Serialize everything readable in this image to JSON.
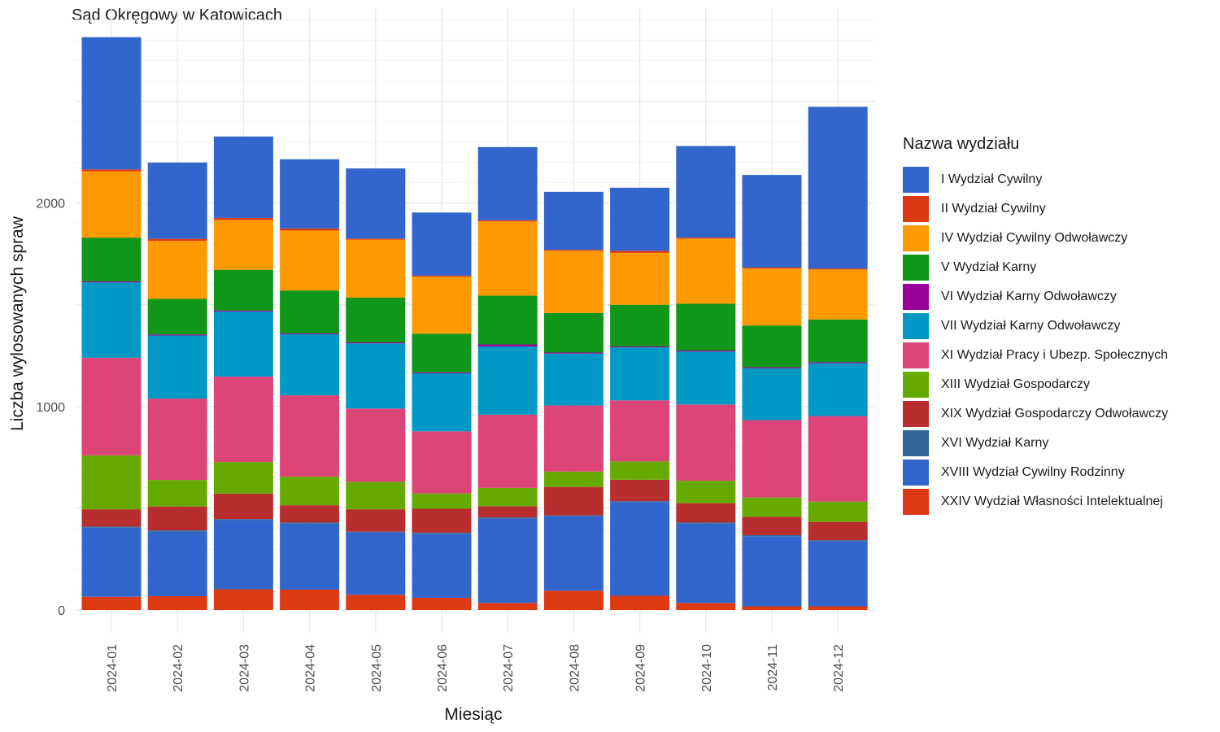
{
  "chart_data": {
    "type": "bar",
    "stacked": true,
    "title": "Sąd Okręgowy w Katowicach",
    "xlabel": "Miesiąc",
    "ylabel": "Liczba wylosowanych spraw",
    "ylim": [
      0,
      2900
    ],
    "yticks": [
      0,
      1000,
      2000
    ],
    "grid": true,
    "legend_title": "Nazwa wydziału",
    "legend_position": "right",
    "categories": [
      "2024-01",
      "2024-02",
      "2024-03",
      "2024-04",
      "2024-05",
      "2024-06",
      "2024-07",
      "2024-08",
      "2024-09",
      "2024-10",
      "2024-11",
      "2024-12"
    ],
    "series": [
      {
        "name": "XXIV Wydział Własności Intelektualnej",
        "color": "#DD3A14",
        "values": [
          65,
          68,
          102,
          100,
          75,
          60,
          35,
          95,
          70,
          35,
          18,
          18
        ]
      },
      {
        "name": "XVIII Wydział Cywilny Rodzinny",
        "color": "#3366CC",
        "values": [
          340,
          318,
          340,
          325,
          305,
          315,
          415,
          365,
          460,
          390,
          345,
          320
        ]
      },
      {
        "name": "XVI Wydział Karny",
        "color": "#336699",
        "values": [
          5,
          5,
          5,
          5,
          5,
          5,
          5,
          5,
          5,
          5,
          5,
          5
        ]
      },
      {
        "name": "XIX Wydział Gospodarczy Odwoławczy",
        "color": "#B82E2E",
        "values": [
          85,
          118,
          125,
          85,
          110,
          118,
          55,
          140,
          105,
          95,
          90,
          90
        ]
      },
      {
        "name": "XIII Wydział Gospodarczy",
        "color": "#66AA00",
        "values": [
          265,
          130,
          155,
          140,
          135,
          75,
          90,
          75,
          90,
          110,
          95,
          100
        ]
      },
      {
        "name": "XI Wydział Pracy i Ubezp. Społecznych",
        "color": "#DD4477",
        "values": [
          480,
          400,
          420,
          400,
          360,
          305,
          360,
          325,
          300,
          375,
          380,
          420
        ]
      },
      {
        "name": "VII Wydział Karny Odwoławczy",
        "color": "#0099C6",
        "values": [
          370,
          310,
          320,
          300,
          320,
          285,
          335,
          255,
          260,
          260,
          255,
          260
        ]
      },
      {
        "name": "VI Wydział Karny Odwoławczy",
        "color": "#990099",
        "values": [
          5,
          5,
          5,
          5,
          5,
          5,
          10,
          5,
          5,
          5,
          5,
          5
        ]
      },
      {
        "name": "V Wydział Karny",
        "color": "#109618",
        "values": [
          215,
          175,
          200,
          210,
          220,
          190,
          240,
          195,
          205,
          230,
          205,
          210
        ]
      },
      {
        "name": "IV Wydział Cywilny Odwoławczy",
        "color": "#FF9900",
        "values": [
          325,
          285,
          245,
          295,
          285,
          280,
          365,
          305,
          255,
          320,
          280,
          245
        ]
      },
      {
        "name": "II Wydział Cywilny",
        "color": "#DC3912",
        "values": [
          10,
          10,
          10,
          10,
          5,
          5,
          5,
          5,
          10,
          5,
          5,
          5
        ]
      },
      {
        "name": "I Wydział Cywilny",
        "color": "#3366CC",
        "values": [
          650,
          375,
          400,
          340,
          345,
          310,
          360,
          285,
          310,
          450,
          455,
          795
        ]
      }
    ]
  },
  "legend_order": [
    "I Wydział Cywilny",
    "II Wydział Cywilny",
    "IV Wydział Cywilny Odwoławczy",
    "V Wydział Karny",
    "VI Wydział Karny Odwoławczy",
    "VII Wydział Karny Odwoławczy",
    "XI Wydział Pracy i Ubezp. Społecznych",
    "XIII Wydział Gospodarczy",
    "XIX Wydział Gospodarczy Odwoławczy",
    "XVI Wydział Karny",
    "XVIII Wydział Cywilny Rodzinny",
    "XXIV Wydział Własności Intelektualnej"
  ]
}
